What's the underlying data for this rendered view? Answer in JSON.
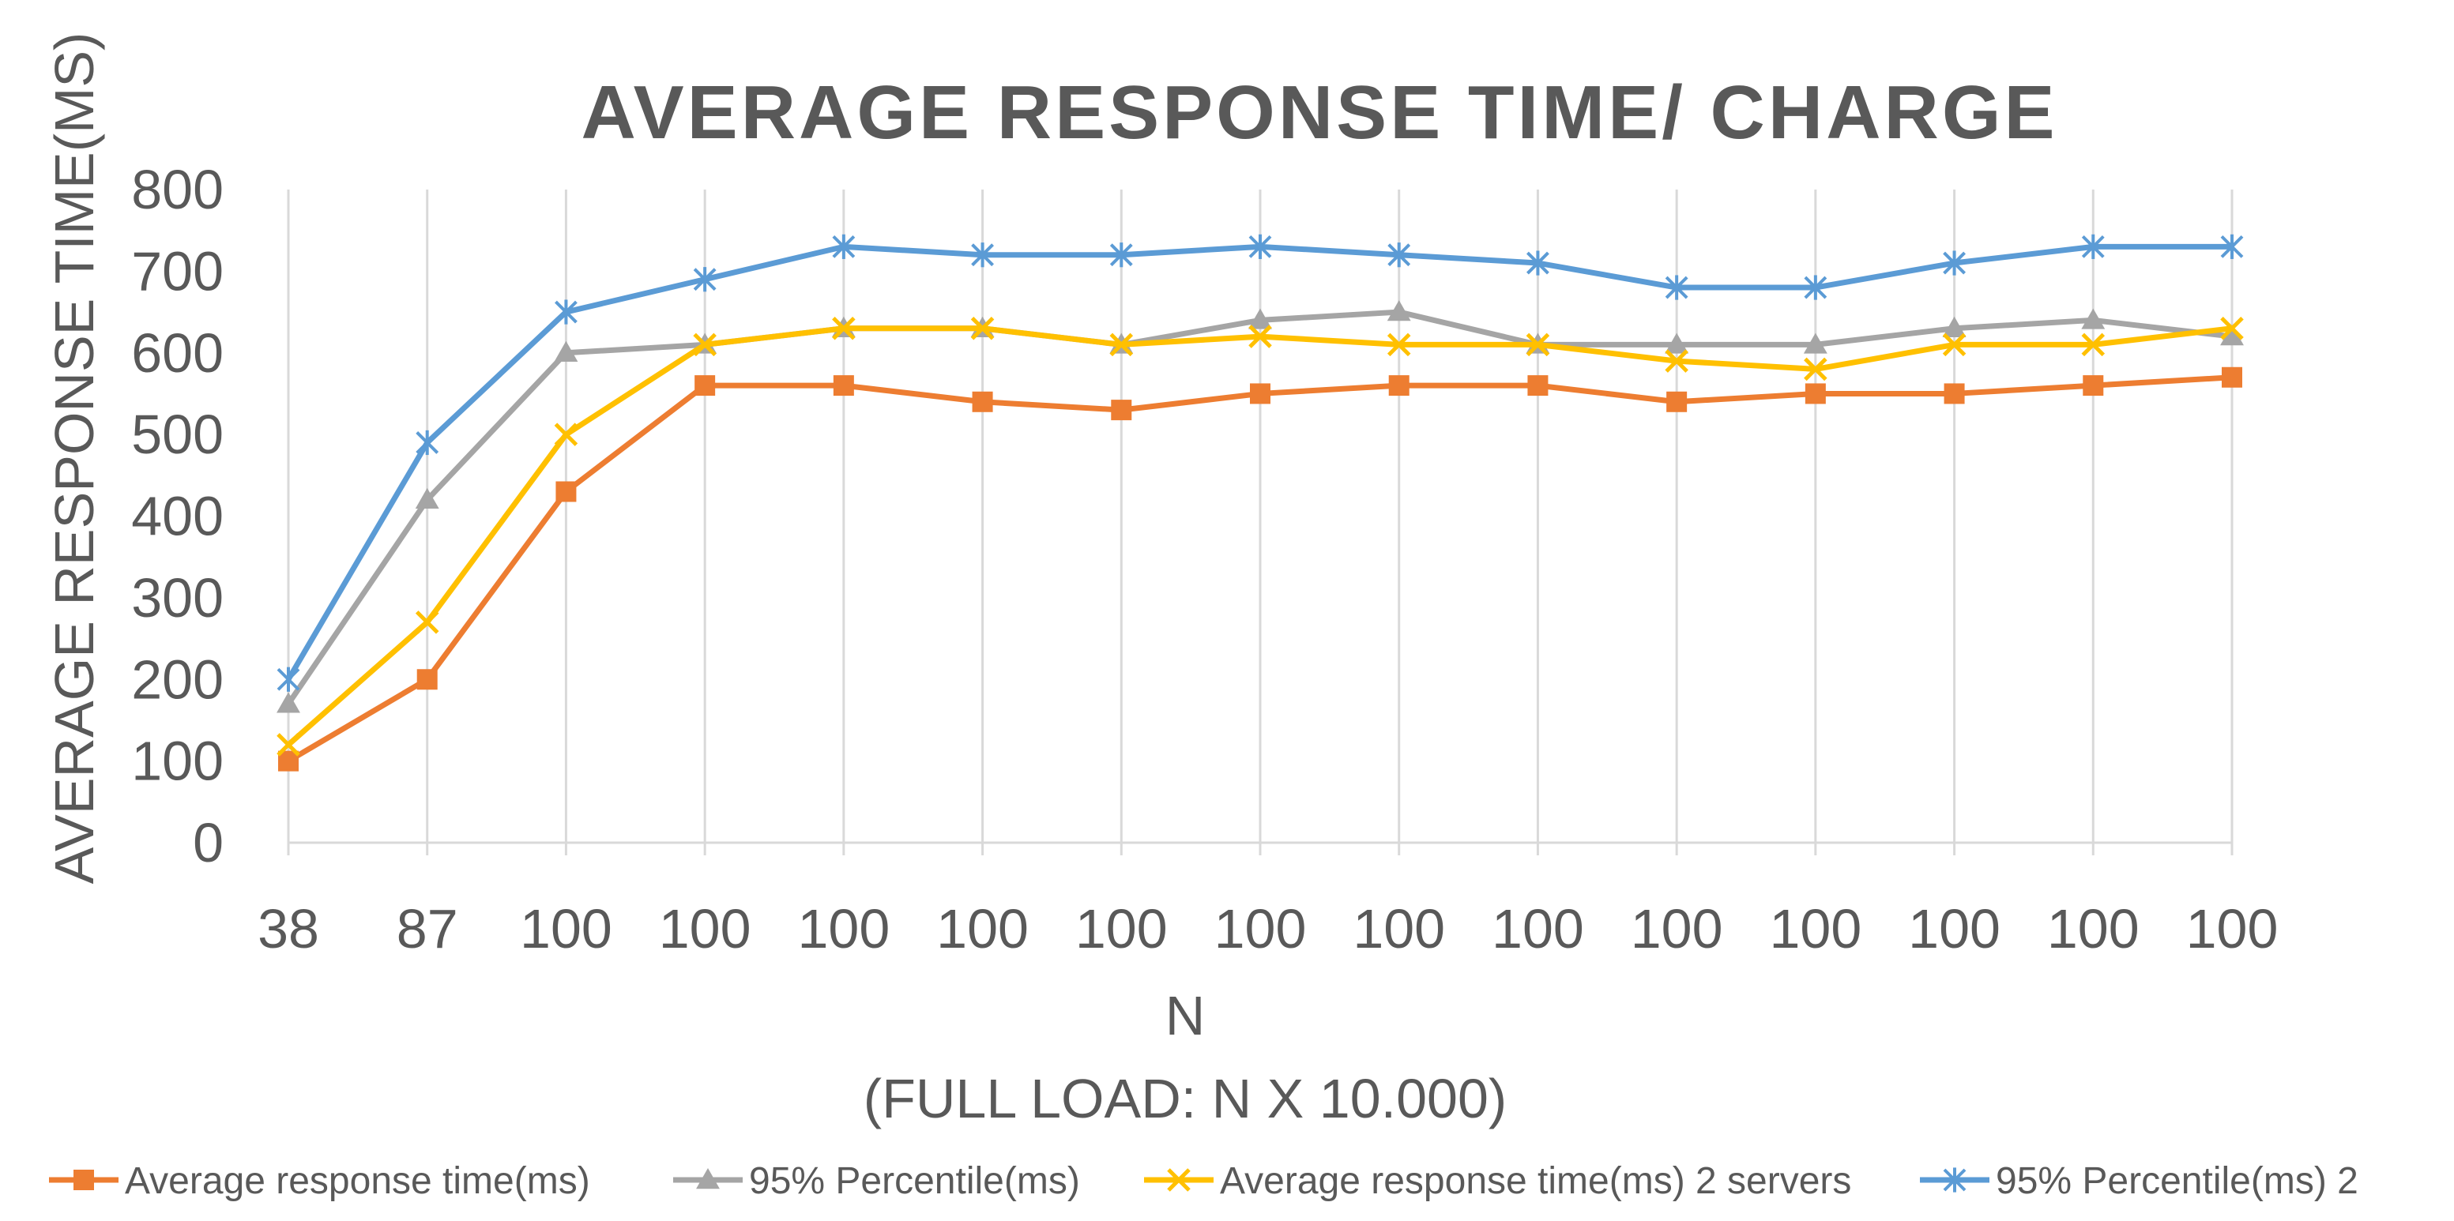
{
  "chart_data": {
    "type": "line",
    "title": "AVERAGE RESPONSE TIME/ CHARGE",
    "ylabel": "AVERAGE RESPONSE TIME(MS)",
    "xlabel_line1": "N",
    "xlabel_line2": "(FULL LOAD: N X 10.000)",
    "ylim": [
      0,
      800
    ],
    "yticks": [
      "0",
      "100",
      "200",
      "300",
      "400",
      "500",
      "600",
      "700",
      "800"
    ],
    "categories": [
      "38",
      "87",
      "100",
      "100",
      "100",
      "100",
      "100",
      "100",
      "100",
      "100",
      "100",
      "100",
      "100",
      "100",
      "100"
    ],
    "grid": "vertical",
    "legend_position": "bottom",
    "series": [
      {
        "name": "Average response time(ms)",
        "color": "#ED7D31",
        "marker": "square",
        "values": [
          100,
          200,
          430,
          560,
          560,
          540,
          530,
          550,
          560,
          560,
          540,
          550,
          550,
          560,
          570
        ]
      },
      {
        "name": "95% Percentile(ms)",
        "color": "#A5A5A5",
        "marker": "triangle",
        "values": [
          170,
          420,
          600,
          610,
          630,
          630,
          610,
          640,
          650,
          610,
          610,
          610,
          630,
          640,
          620
        ]
      },
      {
        "name": "Average response time(ms) 2 servers",
        "color": "#FFC000",
        "marker": "x",
        "values": [
          120,
          270,
          500,
          610,
          630,
          630,
          610,
          620,
          610,
          610,
          590,
          580,
          610,
          610,
          630
        ]
      },
      {
        "name": "95% Percentile(ms) 2",
        "color": "#5B9BD5",
        "marker": "star",
        "values": [
          200,
          490,
          650,
          690,
          730,
          720,
          720,
          730,
          720,
          710,
          680,
          680,
          710,
          730,
          730
        ]
      }
    ]
  }
}
